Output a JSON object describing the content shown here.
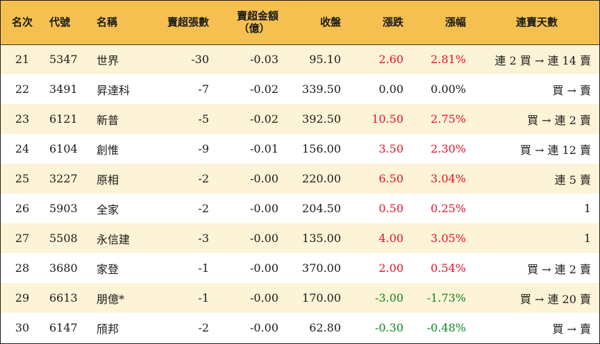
{
  "headers": {
    "rank": "名次",
    "code": "代號",
    "name": "名稱",
    "net_sell_lots": "賣超張數",
    "net_sell_amount_l1": "賣超金額",
    "net_sell_amount_l2": "（億）",
    "close": "收盤",
    "change": "漲跌",
    "change_pct": "漲幅",
    "streak": "連賣天數"
  },
  "colors": {
    "header_bg": "#f5c04f",
    "odd_row_bg": "#fdf3d6",
    "up": "#e8102a",
    "down": "#0a8a1e"
  },
  "rows": [
    {
      "rank": "21",
      "code": "5347",
      "name": "世界",
      "lots": "-30",
      "amount": "-0.03",
      "close": "95.10",
      "change": "2.60",
      "pct": "2.81%",
      "dir": "up",
      "streak": "連 2 買 → 連 14 賣"
    },
    {
      "rank": "22",
      "code": "3491",
      "name": "昇達科",
      "lots": "-7",
      "amount": "-0.02",
      "close": "339.50",
      "change": "0.00",
      "pct": "0.00%",
      "dir": "flat",
      "streak": "買 → 賣"
    },
    {
      "rank": "23",
      "code": "6121",
      "name": "新普",
      "lots": "-5",
      "amount": "-0.02",
      "close": "392.50",
      "change": "10.50",
      "pct": "2.75%",
      "dir": "up",
      "streak": "買 → 連 2 賣"
    },
    {
      "rank": "24",
      "code": "6104",
      "name": "創惟",
      "lots": "-9",
      "amount": "-0.01",
      "close": "156.00",
      "change": "3.50",
      "pct": "2.30%",
      "dir": "up",
      "streak": "買 → 連 12 賣"
    },
    {
      "rank": "25",
      "code": "3227",
      "name": "原相",
      "lots": "-2",
      "amount": "-0.00",
      "close": "220.00",
      "change": "6.50",
      "pct": "3.04%",
      "dir": "up",
      "streak": "連 5 賣"
    },
    {
      "rank": "26",
      "code": "5903",
      "name": "全家",
      "lots": "-2",
      "amount": "-0.00",
      "close": "204.50",
      "change": "0.50",
      "pct": "0.25%",
      "dir": "up",
      "streak": "1"
    },
    {
      "rank": "27",
      "code": "5508",
      "name": "永信建",
      "lots": "-3",
      "amount": "-0.00",
      "close": "135.00",
      "change": "4.00",
      "pct": "3.05%",
      "dir": "up",
      "streak": "1"
    },
    {
      "rank": "28",
      "code": "3680",
      "name": "家登",
      "lots": "-1",
      "amount": "-0.00",
      "close": "370.00",
      "change": "2.00",
      "pct": "0.54%",
      "dir": "up",
      "streak": "買 → 連 2 賣"
    },
    {
      "rank": "29",
      "code": "6613",
      "name": "朋億*",
      "lots": "-1",
      "amount": "-0.00",
      "close": "170.00",
      "change": "-3.00",
      "pct": "-1.73%",
      "dir": "down",
      "streak": "買 → 連 20 賣"
    },
    {
      "rank": "30",
      "code": "6147",
      "name": "頎邦",
      "lots": "-2",
      "amount": "-0.00",
      "close": "62.80",
      "change": "-0.30",
      "pct": "-0.48%",
      "dir": "down",
      "streak": "買 → 賣"
    }
  ]
}
